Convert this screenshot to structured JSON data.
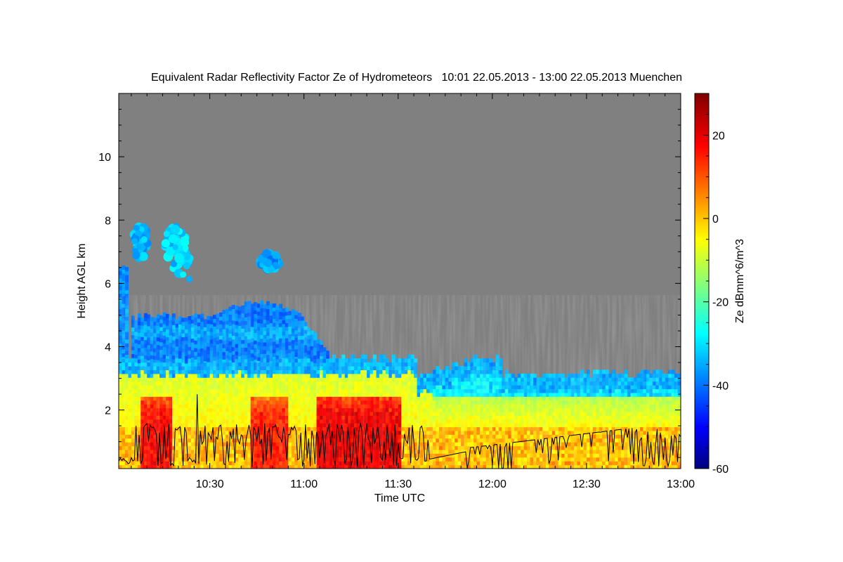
{
  "chart_data": {
    "type": "heatmap",
    "title": "Equivalent Radar Reflectivity Factor Ze of Hydrometeors   10:01 22.05.2013 - 13:00 22.05.2013 Muenchen",
    "xlabel": "Time UTC",
    "ylabel": "Height AGL km",
    "x_range_minutes": [
      601,
      780
    ],
    "x_ticks": [
      {
        "value": 630,
        "label": "10:30"
      },
      {
        "value": 660,
        "label": "11:00"
      },
      {
        "value": 690,
        "label": "11:30"
      },
      {
        "value": 720,
        "label": "12:00"
      },
      {
        "value": 750,
        "label": "12:30"
      },
      {
        "value": 780,
        "label": "13:00"
      }
    ],
    "y_range": [
      0.15,
      12.0
    ],
    "y_ticks": [
      {
        "value": 2,
        "label": "2"
      },
      {
        "value": 4,
        "label": "4"
      },
      {
        "value": 6,
        "label": "6"
      },
      {
        "value": 8,
        "label": "8"
      },
      {
        "value": 10,
        "label": "10"
      }
    ],
    "colorbar": {
      "label": "Ze dBmm^6/m^3",
      "range": [
        -60,
        30
      ],
      "ticks": [
        {
          "value": -60,
          "label": "-60"
        },
        {
          "value": -40,
          "label": "-40"
        },
        {
          "value": -20,
          "label": "-20"
        },
        {
          "value": 0,
          "label": "0"
        },
        {
          "value": 20,
          "label": "20"
        }
      ],
      "colormap": "jet"
    },
    "background_color": "#808080",
    "features": [
      {
        "kind": "low_layer",
        "start": 601,
        "end": 780,
        "top_km": 3.6,
        "approx_ze_dbz": 0
      },
      {
        "kind": "upper_layer",
        "start": 605,
        "end": 667,
        "bottom_km": 3.6,
        "top_km": 5.0,
        "approx_ze_dbz": -38
      },
      {
        "kind": "cloud_patch",
        "center_min": 608,
        "center_km": 7.3,
        "approx_ze_dbz": -32
      },
      {
        "kind": "cloud_patch",
        "center_min": 620,
        "center_km": 7.0,
        "approx_ze_dbz": -30
      },
      {
        "kind": "cloud_patch",
        "center_min": 649,
        "center_km": 6.7,
        "approx_ze_dbz": -35
      },
      {
        "kind": "strong_echo_core",
        "start": 608,
        "end": 617,
        "approx_ze_dbz": 18
      },
      {
        "kind": "strong_echo_core",
        "start": 643,
        "end": 654,
        "approx_ze_dbz": 16
      },
      {
        "kind": "strong_echo_core",
        "start": 664,
        "end": 690,
        "approx_ze_dbz": 20
      }
    ],
    "overlay_line": {
      "name": "",
      "color": "#000000"
    }
  }
}
